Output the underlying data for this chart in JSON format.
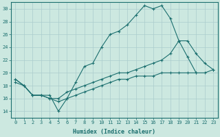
{
  "xlabel": "Humidex (Indice chaleur)",
  "bg_color": "#cce8e0",
  "grid_color": "#aacccc",
  "line_color": "#1a6e6e",
  "xlim": [
    -0.5,
    23.5
  ],
  "ylim": [
    13,
    31
  ],
  "yticks": [
    14,
    16,
    18,
    20,
    22,
    24,
    26,
    28,
    30
  ],
  "xticks": [
    0,
    1,
    2,
    3,
    4,
    5,
    6,
    7,
    8,
    9,
    10,
    11,
    12,
    13,
    14,
    15,
    16,
    17,
    18,
    19,
    20,
    21,
    22,
    23
  ],
  "curve1_x": [
    0,
    1,
    2,
    3,
    4,
    5,
    6,
    7,
    8,
    9,
    10,
    11,
    12,
    13,
    14,
    15,
    16,
    17,
    18,
    19,
    20,
    21
  ],
  "curve1_y": [
    19.0,
    18.0,
    16.5,
    16.5,
    16.5,
    14.0,
    16.0,
    18.5,
    21.0,
    21.5,
    24.0,
    26.0,
    26.5,
    27.5,
    29.0,
    30.5,
    30.0,
    30.5,
    28.5,
    25.0,
    22.5,
    20.0
  ],
  "curve2_x": [
    0,
    1,
    2,
    3,
    4,
    5,
    6,
    7,
    8,
    9,
    10,
    11,
    12,
    13,
    14,
    15,
    16,
    17,
    18,
    19,
    20,
    21,
    22,
    23
  ],
  "curve2_y": [
    19.0,
    18.0,
    16.5,
    16.5,
    16.0,
    16.0,
    17.0,
    17.5,
    18.0,
    18.5,
    19.0,
    19.5,
    20.0,
    20.0,
    20.5,
    21.0,
    21.5,
    22.0,
    23.0,
    25.0,
    25.0,
    23.0,
    21.5,
    20.5
  ],
  "curve3_x": [
    0,
    1,
    2,
    3,
    4,
    5,
    6,
    7,
    8,
    9,
    10,
    11,
    12,
    13,
    14,
    15,
    16,
    17,
    18,
    19,
    20,
    21,
    22,
    23
  ],
  "curve3_y": [
    18.5,
    18.0,
    16.5,
    16.5,
    16.0,
    15.5,
    16.0,
    16.5,
    17.0,
    17.5,
    18.0,
    18.5,
    19.0,
    19.0,
    19.5,
    19.5,
    19.5,
    20.0,
    20.0,
    20.0,
    20.0,
    20.0,
    20.0,
    20.5
  ]
}
